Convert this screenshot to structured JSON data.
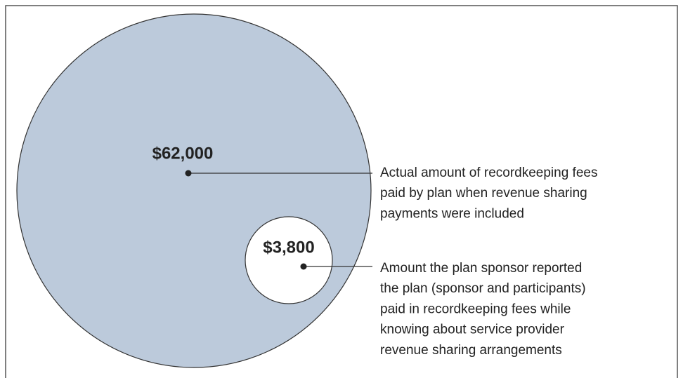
{
  "items": [
    {
      "label": "$62,000",
      "description": [
        "Actual amount of recordkeeping fees",
        "paid by plan when revenue sharing",
        "payments were included"
      ]
    },
    {
      "label": "$3,800",
      "description": [
        "Amount the plan sponsor reported",
        "the plan (sponsor and participants)",
        "paid in recordkeeping fees while",
        "knowing about service provider",
        "revenue sharing arrangements"
      ]
    }
  ]
}
